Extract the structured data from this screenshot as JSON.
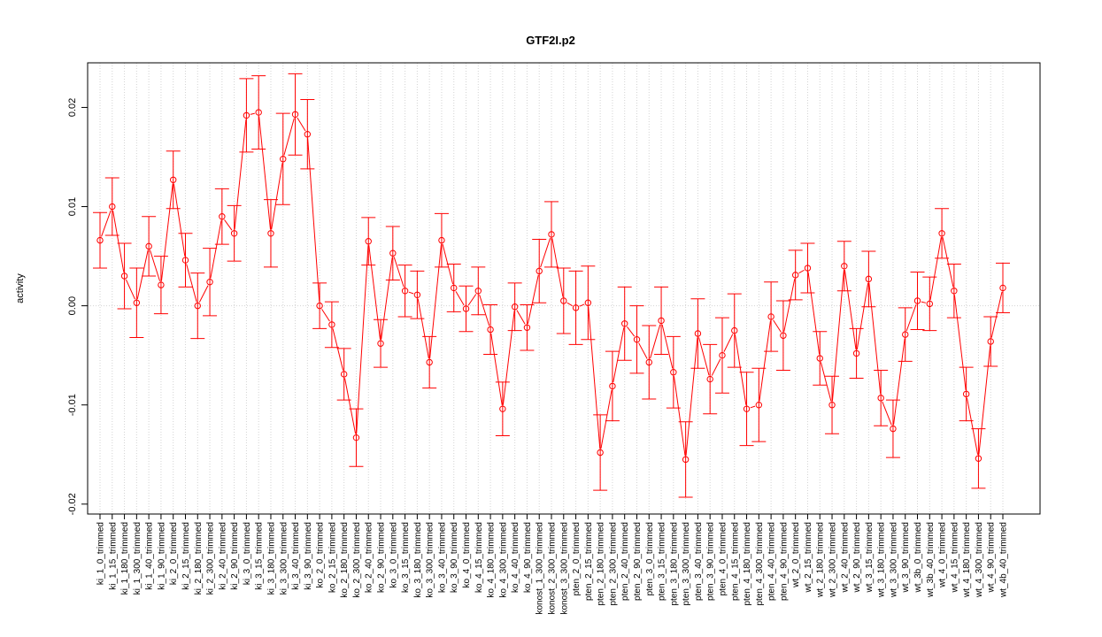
{
  "chart_data": {
    "type": "line",
    "title": "GTF2I.p2",
    "xlabel": "",
    "ylabel": "activity",
    "ylim": [
      -0.021,
      0.0245
    ],
    "yticks": [
      -0.02,
      -0.01,
      0.0,
      0.01,
      0.02
    ],
    "ytick_labels": [
      "-0.02",
      "-0.01",
      "0.00",
      "0.01",
      "0.02"
    ],
    "grid": true,
    "series": [
      {
        "color": "#ff0000",
        "categories": [
          "ki_1_0_trimmed",
          "ki_1_15_trimmed",
          "ki_1_180_trimmed",
          "ki_1_300_trimmed",
          "ki_1_40_trimmed",
          "ki_1_90_trimmed",
          "ki_2_0_trimmed",
          "ki_2_15_trimmed",
          "ki_2_180_trimmed",
          "ki_2_300_trimmed",
          "ki_2_40_trimmed",
          "ki_2_90_trimmed",
          "ki_3_0_trimmed",
          "ki_3_15_trimmed",
          "ki_3_180_trimmed",
          "ki_3_300_trimmed",
          "ki_3_40_trimmed",
          "ki_3_90_trimmed",
          "ko_2_0_trimmed",
          "ko_2_15_trimmed",
          "ko_2_180_trimmed",
          "ko_2_300_trimmed",
          "ko_2_40_trimmed",
          "ko_2_90_trimmed",
          "ko_3_0_trimmed",
          "ko_3_15_trimmed",
          "ko_3_180_trimmed",
          "ko_3_300_trimmed",
          "ko_3_40_trimmed",
          "ko_3_90_trimmed",
          "ko_4_0_trimmed",
          "ko_4_15_trimmed",
          "ko_4_180_trimmed",
          "ko_4_300_trimmed",
          "ko_4_40_trimmed",
          "ko_4_90_trimmed",
          "konost_1_300_trimmed",
          "konost_2_300_trimmed",
          "konost_3_300_trimmed",
          "pten_2_0_trimmed",
          "pten_2_15_trimmed",
          "pten_2_180_trimmed",
          "pten_2_300_trimmed",
          "pten_2_40_trimmed",
          "pten_2_90_trimmed",
          "pten_3_0_trimmed",
          "pten_3_15_trimmed",
          "pten_3_180_trimmed",
          "pten_3_300_trimmed",
          "pten_3_40_trimmed",
          "pten_3_90_trimmed",
          "pten_4_0_trimmed",
          "pten_4_15_trimmed",
          "pten_4_180_trimmed",
          "pten_4_300_trimmed",
          "pten_4_40_trimmed",
          "pten_4_90_trimmed",
          "wt_2_0_trimmed",
          "wt_2_15_trimmed",
          "wt_2_180_trimmed",
          "wt_2_300_trimmed",
          "wt_2_40_trimmed",
          "wt_2_90_trimmed",
          "wt_3_15_trimmed",
          "wt_3_180_trimmed",
          "wt_3_300_trimmed",
          "wt_3_90_trimmed",
          "wt_3b_0_trimmed",
          "wt_3b_40_trimmed",
          "wt_4_0_trimmed",
          "wt_4_15_trimmed",
          "wt_4_180_trimmed",
          "wt_4_300_trimmed",
          "wt_4_90_trimmed",
          "wt_4b_40_trimmed"
        ],
        "values": [
          0.0066,
          0.01,
          0.003,
          0.0003,
          0.006,
          0.0021,
          0.0127,
          0.0046,
          0.0,
          0.0024,
          0.009,
          0.0073,
          0.0192,
          0.0195,
          0.0073,
          0.0148,
          0.0193,
          0.0173,
          0.0,
          -0.0019,
          -0.0069,
          -0.0133,
          0.0065,
          -0.0038,
          0.0053,
          0.0015,
          0.0011,
          -0.0057,
          0.0066,
          0.0018,
          -0.0003,
          0.0015,
          -0.0024,
          -0.0104,
          -0.0001,
          -0.0022,
          0.0035,
          0.0072,
          0.0005,
          -0.0002,
          0.0003,
          -0.0148,
          -0.0081,
          -0.0018,
          -0.0034,
          -0.0057,
          -0.0015,
          -0.0067,
          -0.0155,
          -0.0028,
          -0.0074,
          -0.005,
          -0.0025,
          -0.0104,
          -0.01,
          -0.0011,
          -0.003,
          0.0031,
          0.0038,
          -0.0053,
          -0.01,
          0.004,
          -0.0048,
          0.0027,
          -0.0093,
          -0.0124,
          -0.0029,
          0.0005,
          0.0002,
          0.0073,
          0.0015,
          -0.0089,
          -0.0154,
          -0.0036,
          0.0018
        ],
        "errors": [
          0.0028,
          0.0029,
          0.0033,
          0.0035,
          0.003,
          0.0029,
          0.0029,
          0.0027,
          0.0033,
          0.0034,
          0.0028,
          0.0028,
          0.0037,
          0.0037,
          0.0034,
          0.0046,
          0.0041,
          0.0035,
          0.0023,
          0.0023,
          0.0026,
          0.0029,
          0.0024,
          0.0024,
          0.0027,
          0.0026,
          0.0024,
          0.0026,
          0.0027,
          0.0024,
          0.0023,
          0.0024,
          0.0025,
          0.0027,
          0.0024,
          0.0023,
          0.0032,
          0.0033,
          0.0033,
          0.0037,
          0.0037,
          0.0038,
          0.0035,
          0.0037,
          0.0034,
          0.0037,
          0.0034,
          0.0036,
          0.0038,
          0.0035,
          0.0035,
          0.0038,
          0.0037,
          0.0037,
          0.0037,
          0.0035,
          0.0035,
          0.0025,
          0.0025,
          0.0027,
          0.0029,
          0.0025,
          0.0025,
          0.0028,
          0.0028,
          0.0029,
          0.0027,
          0.0029,
          0.0027,
          0.0025,
          0.0027,
          0.0027,
          0.003,
          0.0025,
          0.0025
        ]
      }
    ]
  }
}
